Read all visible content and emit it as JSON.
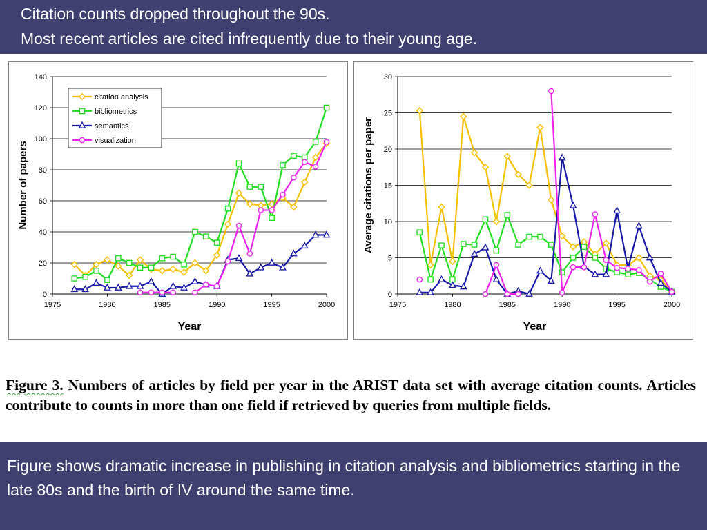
{
  "header": {
    "line1": "Citation counts dropped throughout the 90s.",
    "line2": "Most recent articles are cited infrequently due to their young age."
  },
  "caption": {
    "label": "Figure 3.",
    "text": " Numbers of articles by field per year in the ARIST data set with average citation counts. Articles contribute to counts in more than one field if retrieved by queries from multiple fields."
  },
  "footer": {
    "text": "Figure shows dramatic increase in publishing in citation analysis and bibliometrics starting in the late 80s and the birth of IV around the same time."
  },
  "colors": {
    "citation_analysis": "#f5c000",
    "bibliometrics": "#22dd22",
    "semantics": "#1a1aaa",
    "visualization": "#ee22ee",
    "band": "#3f3f70"
  },
  "chart_data": [
    {
      "type": "line",
      "title": "",
      "xlabel": "Year",
      "ylabel": "Number of papers",
      "xlim": [
        1975,
        2000
      ],
      "ylim": [
        0,
        140
      ],
      "xticks": [
        1975,
        1980,
        1985,
        1990,
        1995,
        2000
      ],
      "yticks": [
        0,
        20,
        40,
        60,
        80,
        100,
        120,
        140
      ],
      "grid": "horizontal",
      "legend": "top-left",
      "x": [
        1977,
        1978,
        1979,
        1980,
        1981,
        1982,
        1983,
        1984,
        1985,
        1986,
        1987,
        1988,
        1989,
        1990,
        1991,
        1992,
        1993,
        1994,
        1995,
        1996,
        1997,
        1998,
        1999,
        2000
      ],
      "series": [
        {
          "name": "citation analysis",
          "color_key": "citation_analysis",
          "marker": "diamond",
          "values": [
            19,
            12,
            19,
            22,
            18,
            12,
            22,
            16,
            15,
            16,
            14,
            20,
            15,
            25,
            45,
            65,
            58,
            57,
            58,
            62,
            56,
            72,
            88,
            97
          ]
        },
        {
          "name": "bibliometrics",
          "color_key": "bibliometrics",
          "marker": "square",
          "values": [
            10,
            11,
            15,
            9,
            23,
            20,
            17,
            17,
            23,
            24,
            19,
            40,
            37,
            33,
            55,
            84,
            69,
            69,
            49,
            83,
            89,
            88,
            98,
            120
          ]
        },
        {
          "name": "semantics",
          "color_key": "semantics",
          "marker": "triangle",
          "values": [
            3,
            3,
            7,
            4,
            4,
            5,
            5,
            8,
            0,
            5,
            4,
            8,
            6,
            5,
            22,
            23,
            13,
            17,
            20,
            17,
            26,
            31,
            38,
            38
          ]
        },
        {
          "name": "visualization",
          "color_key": "visualization",
          "marker": "circle",
          "values": [
            null,
            null,
            null,
            null,
            null,
            null,
            1,
            1,
            1,
            1,
            null,
            1,
            6,
            5,
            21,
            44,
            26,
            54,
            54,
            64,
            75,
            85,
            82,
            98
          ]
        }
      ]
    },
    {
      "type": "line",
      "title": "",
      "xlabel": "Year",
      "ylabel": "Average citations per paper",
      "xlim": [
        1975,
        2000
      ],
      "ylim": [
        0,
        30
      ],
      "xticks": [
        1975,
        1980,
        1985,
        1990,
        1995,
        2000
      ],
      "yticks": [
        0,
        5,
        10,
        15,
        20,
        25,
        30
      ],
      "grid": "horizontal",
      "legend": "none",
      "x": [
        1977,
        1978,
        1979,
        1980,
        1981,
        1982,
        1983,
        1984,
        1985,
        1986,
        1987,
        1988,
        1989,
        1990,
        1991,
        1992,
        1993,
        1994,
        1995,
        1996,
        1997,
        1998,
        1999,
        2000
      ],
      "series": [
        {
          "color_key": "citation_analysis",
          "marker": "diamond",
          "values": [
            25.3,
            4,
            12,
            4.5,
            24.5,
            19.5,
            17.5,
            10,
            19,
            16.5,
            15,
            23,
            13,
            8,
            6.5,
            7.2,
            5.5,
            7,
            4,
            4,
            5,
            2.5,
            2,
            0.3
          ]
        },
        {
          "color_key": "bibliometrics",
          "marker": "square",
          "values": [
            8.5,
            2,
            6.7,
            2,
            6.9,
            6.8,
            10.3,
            6,
            10.9,
            6.8,
            7.9,
            7.9,
            6.8,
            3,
            5,
            6.5,
            5,
            3.5,
            3,
            2.7,
            2.9,
            2,
            1,
            0.3
          ]
        },
        {
          "color_key": "semantics",
          "marker": "triangle",
          "values": [
            0.2,
            0.2,
            2,
            1.2,
            1,
            5.5,
            6.4,
            2,
            0,
            0.4,
            0,
            3.2,
            1.8,
            18.8,
            12.2,
            3.8,
            2.7,
            2.7,
            11.5,
            3.5,
            9.4,
            5,
            1.5,
            0.3
          ]
        },
        {
          "color_key": "visualization",
          "marker": "circle",
          "values": [
            2,
            null,
            null,
            null,
            null,
            null,
            0,
            4,
            0,
            0,
            null,
            null,
            28,
            0.2,
            3.7,
            3.7,
            11,
            4.7,
            3.6,
            3.5,
            3.3,
            1.7,
            2.8,
            0.3
          ]
        }
      ]
    }
  ]
}
